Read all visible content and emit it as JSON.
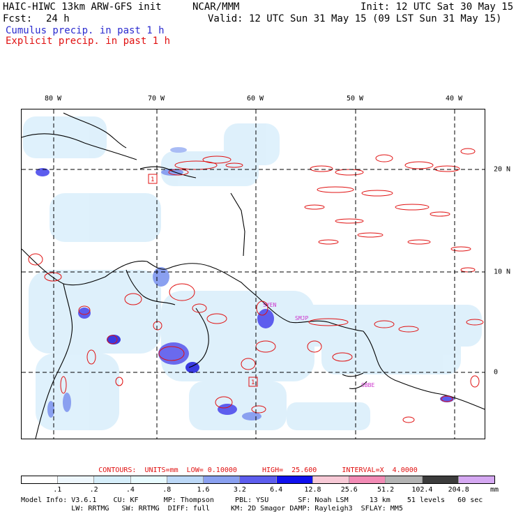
{
  "header": {
    "title": "HAIC-HIWC 13km ARW-GFS init",
    "org": "NCAR/MMM",
    "init": "Init: 12 UTC Sat 30 May 15",
    "fcst_label": "Fcst:",
    "fcst_value": "24 h",
    "valid": "Valid: 12 UTC Sun 31 May 15 (09 LST Sun 31 May 15)",
    "cumulus_legend": "Cumulus precip. in past 1 h",
    "explicit_legend": "Explicit precip. in past 1 h"
  },
  "map": {
    "longitude_labels": [
      "80 W",
      "70 W",
      "60 W",
      "50 W",
      "40 W"
    ],
    "latitude_labels": [
      "20 N",
      "10 N",
      "0"
    ],
    "station_labels": [
      "SYEN",
      "SMJP",
      "SBBE"
    ],
    "box_labels": [
      "1",
      "1"
    ],
    "colors": {
      "coast": "#000000",
      "explicit_contour": "#e01010",
      "cumulus_light": "#cfe8f8",
      "cumulus_medium": "#8aa0f0",
      "cumulus_heavy": "#3a3ae0",
      "station": "#cc33cc",
      "grid": "#000000"
    }
  },
  "contours": {
    "text": "CONTOURS:  UNITS=mm  LOW= 0.10000      HIGH=  25.600      INTERVAL=X  4.0000"
  },
  "colorbar": {
    "tick_labels": [
      ".1",
      ".2",
      ".4",
      ".8",
      "1.6",
      "3.2",
      "6.4",
      "12.8",
      "25.6",
      "51.2",
      "102.4",
      "204.8"
    ],
    "unit": "mm",
    "colors": [
      "#ffffff",
      "#eef7fd",
      "#d6eefa",
      "#e8fbff",
      "#bcd8f7",
      "#8aa0f0",
      "#5d5dee",
      "#1010ee",
      "#f7c9d6",
      "#f28bb5",
      "#b3b3b3",
      "#3c3c3c",
      "#d5a8f2"
    ]
  },
  "model_info": {
    "line1": "Model Info: V3.6.1    CU: KF      MP: Thompson     PBL: YSU       SF: Noah LSM     13 km    51 levels   60 sec",
    "line2": "            LW: RRTMG   SW: RRTMG  DIFF: full     KM: 2D Smagor DAMP: Rayleigh3  SFLAY: MM5"
  }
}
